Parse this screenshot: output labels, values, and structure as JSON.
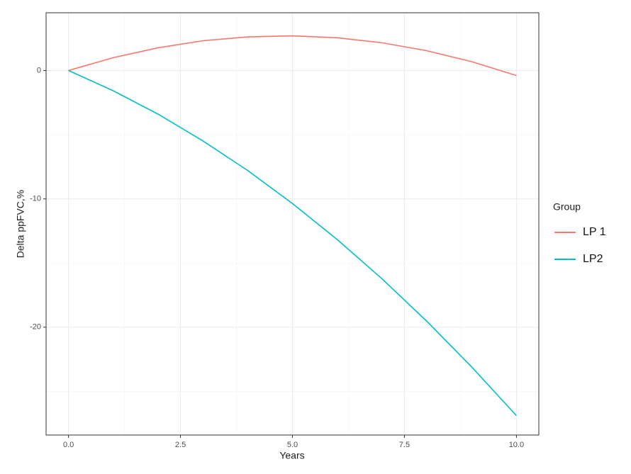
{
  "chart_data": {
    "type": "line",
    "x_label": "Years",
    "y_label": "Delta ppFVC,%",
    "x": [
      0,
      1,
      2,
      3,
      4,
      5,
      6,
      7,
      8,
      9,
      10
    ],
    "series": [
      {
        "name": "LP 1",
        "color": "#f8766d",
        "values": [
          0,
          1.0,
          1.77,
          2.32,
          2.62,
          2.7,
          2.55,
          2.16,
          1.54,
          0.69,
          -0.39
        ]
      },
      {
        "name": "LP2",
        "color": "#00bfc4",
        "values": [
          0,
          -1.58,
          -3.4,
          -5.48,
          -7.79,
          -10.36,
          -13.17,
          -16.23,
          -19.54,
          -23.09,
          -26.89
        ]
      }
    ],
    "xlim": [
      -0.5,
      10.5
    ],
    "xticks": [
      {
        "value": 0,
        "label": "0.0"
      },
      {
        "value": 2.5,
        "label": "2.5"
      },
      {
        "value": 5,
        "label": "5.0"
      },
      {
        "value": 7.5,
        "label": "7.5"
      },
      {
        "value": 10,
        "label": "10.0"
      }
    ],
    "ylim": [
      -28.4,
      4.5
    ],
    "yticks": [
      -20,
      -10,
      0
    ],
    "grid": true,
    "minor_grid": true,
    "legend_title": "Group",
    "legend_position": "right"
  }
}
